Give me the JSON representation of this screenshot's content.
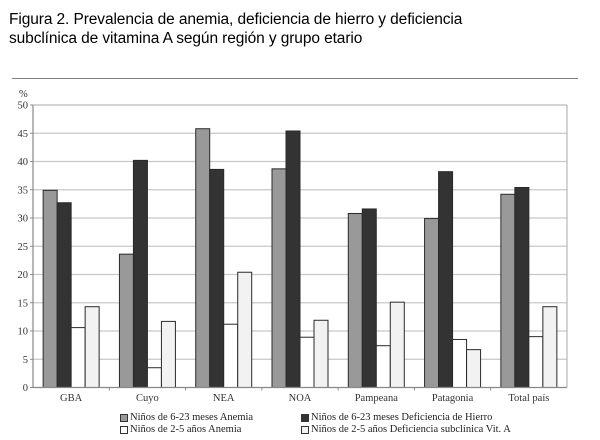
{
  "title_line1": "Figura 2. Prevalencia de anemia, deficiencia de hierro y deficiencia",
  "title_line2": "subclínica de vitamina A según región y grupo etario",
  "chart_data": {
    "type": "bar",
    "title": "Figura 2. Prevalencia de anemia, deficiencia de hierro y deficiencia subclínica de vitamina A según región y grupo etario",
    "xlabel": "",
    "ylabel": "%",
    "ylim": [
      0,
      50
    ],
    "yticks": [
      0,
      5,
      10,
      15,
      20,
      25,
      30,
      35,
      40,
      45,
      50
    ],
    "grid": true,
    "legend_position": "bottom",
    "categories": [
      "GBA",
      "Cuyo",
      "NEA",
      "NOA",
      "Pampeana",
      "Patagonia",
      "Total país"
    ],
    "series": [
      {
        "name": "Niños de 6-23 meses Anemia",
        "color": "#999999",
        "values": [
          34.9,
          23.6,
          45.8,
          38.7,
          30.8,
          29.9,
          34.2
        ]
      },
      {
        "name": "Niños de 6-23 meses Deficiencia de Hierro",
        "color": "#333333",
        "values": [
          32.7,
          40.2,
          38.6,
          45.4,
          31.6,
          38.2,
          35.4
        ]
      },
      {
        "name": "Niños de 2-5 años Anemia",
        "color": "#ffffff",
        "values": [
          10.6,
          3.5,
          11.2,
          8.9,
          7.4,
          8.5,
          9.0
        ]
      },
      {
        "name": "Niños de 2-5 años Deficiencia subclínica Vit. A",
        "color": "#f2f2f2",
        "values": [
          14.3,
          11.7,
          20.4,
          11.9,
          15.1,
          6.7,
          14.3
        ]
      }
    ]
  }
}
